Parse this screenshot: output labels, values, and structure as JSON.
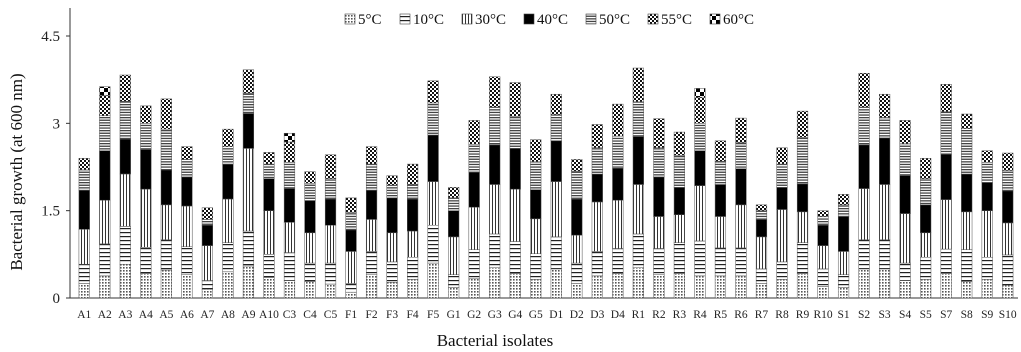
{
  "chart_data": {
    "type": "bar",
    "stacked": true,
    "xlabel": "Bacterial isolates",
    "ylabel": "Bacterial growth (at 600 nm)",
    "ylim": [
      0,
      4.5
    ],
    "yticks": [
      "0",
      "1.5",
      "3",
      "4.5"
    ],
    "ytick_values": [
      0,
      1.5,
      3,
      4.5
    ],
    "grid": false,
    "legend_position": "top",
    "categories": [
      "A1",
      "A2",
      "A3",
      "A4",
      "A5",
      "A6",
      "A7",
      "A8",
      "A9",
      "A10",
      "C3",
      "C4",
      "C5",
      "F1",
      "F2",
      "F3",
      "F4",
      "F5",
      "G1",
      "G2",
      "G3",
      "G4",
      "G5",
      "D1",
      "D2",
      "D3",
      "D4",
      "R1",
      "R2",
      "R3",
      "R4",
      "R5",
      "R6",
      "R7",
      "R8",
      "R9",
      "R10",
      "S1",
      "S2",
      "S3",
      "S4",
      "S5",
      "S7",
      "S8",
      "S9",
      "S10"
    ],
    "series": [
      {
        "name": "5°C",
        "pattern": "dots",
        "values": [
          0.25,
          0.38,
          0.58,
          0.42,
          0.48,
          0.4,
          0.15,
          0.45,
          0.55,
          0.35,
          0.3,
          0.28,
          0.24,
          0.1,
          0.4,
          0.27,
          0.32,
          0.6,
          0.18,
          0.33,
          0.52,
          0.42,
          0.32,
          0.5,
          0.25,
          0.38,
          0.42,
          0.52,
          0.4,
          0.42,
          0.38,
          0.38,
          0.38,
          0.25,
          0.32,
          0.42,
          0.2,
          0.18,
          0.5,
          0.5,
          0.3,
          0.32,
          0.42,
          0.28,
          0.32,
          0.22
        ]
      },
      {
        "name": "10°C",
        "pattern": "hlines",
        "values": [
          0.33,
          0.55,
          0.65,
          0.45,
          0.52,
          0.48,
          0.15,
          0.5,
          0.6,
          0.4,
          0.48,
          0.32,
          0.36,
          0.15,
          0.4,
          0.35,
          0.38,
          0.65,
          0.22,
          0.5,
          0.58,
          0.55,
          0.44,
          0.55,
          0.35,
          0.42,
          0.43,
          0.58,
          0.45,
          0.53,
          0.6,
          0.48,
          0.48,
          0.25,
          0.3,
          0.53,
          0.3,
          0.22,
          0.5,
          0.5,
          0.3,
          0.38,
          0.42,
          0.55,
          0.38,
          0.52
        ]
      },
      {
        "name": "30°C",
        "pattern": "vlines",
        "values": [
          0.6,
          0.75,
          0.9,
          1.0,
          0.6,
          0.7,
          0.6,
          0.75,
          1.42,
          0.75,
          0.52,
          0.52,
          0.65,
          0.55,
          0.55,
          0.5,
          0.45,
          0.75,
          0.65,
          0.73,
          0.85,
          0.9,
          0.6,
          0.95,
          0.48,
          0.85,
          0.83,
          0.85,
          0.55,
          0.48,
          0.95,
          0.54,
          0.74,
          0.55,
          0.9,
          0.53,
          0.4,
          0.4,
          0.88,
          0.95,
          0.85,
          0.42,
          0.85,
          0.65,
          0.8,
          0.55
        ]
      },
      {
        "name": "40°C",
        "pattern": "solid",
        "values": [
          0.67,
          0.85,
          0.6,
          0.68,
          0.6,
          0.5,
          0.35,
          0.6,
          0.6,
          0.55,
          0.58,
          0.55,
          0.45,
          0.37,
          0.5,
          0.6,
          0.55,
          0.8,
          0.45,
          0.6,
          0.68,
          0.7,
          0.5,
          0.7,
          0.62,
          0.48,
          0.55,
          0.82,
          0.68,
          0.47,
          0.6,
          0.55,
          0.62,
          0.3,
          0.38,
          0.48,
          0.35,
          0.6,
          0.75,
          0.8,
          0.65,
          0.48,
          0.78,
          0.65,
          0.48,
          0.55
        ]
      },
      {
        "name": "50°C",
        "pattern": "hlines-dense",
        "values": [
          0.35,
          0.6,
          0.65,
          0.45,
          0.7,
          0.3,
          0.1,
          0.3,
          0.35,
          0.25,
          0.45,
          0.3,
          0.35,
          0.3,
          0.45,
          0.22,
          0.25,
          0.55,
          0.22,
          0.48,
          0.65,
          0.55,
          0.48,
          0.45,
          0.48,
          0.45,
          0.55,
          0.6,
          0.5,
          0.55,
          0.47,
          0.4,
          0.45,
          0.15,
          0.4,
          0.8,
          0.15,
          0.2,
          0.65,
          0.35,
          0.55,
          0.45,
          0.73,
          0.78,
          0.35,
          0.35
        ]
      },
      {
        "name": "55°C",
        "pattern": "checker",
        "values": [
          0.2,
          0.35,
          0.45,
          0.3,
          0.52,
          0.22,
          0.2,
          0.3,
          0.4,
          0.2,
          0.35,
          0.2,
          0.41,
          0.25,
          0.3,
          0.16,
          0.35,
          0.38,
          0.18,
          0.41,
          0.52,
          0.58,
          0.38,
          0.35,
          0.2,
          0.4,
          0.55,
          0.58,
          0.5,
          0.4,
          0.45,
          0.35,
          0.42,
          0.1,
          0.28,
          0.45,
          0.1,
          0.18,
          0.58,
          0.4,
          0.4,
          0.35,
          0.47,
          0.25,
          0.2,
          0.3
        ]
      },
      {
        "name": "60°C",
        "pattern": "checker-large",
        "values": [
          0,
          0.15,
          0,
          0,
          0,
          0,
          0,
          0,
          0,
          0,
          0.15,
          0,
          0,
          0,
          0,
          0,
          0,
          0,
          0,
          0,
          0,
          0,
          0,
          0,
          0,
          0,
          0,
          0,
          0,
          0,
          0.15,
          0,
          0,
          0,
          0,
          0,
          0,
          0,
          0,
          0,
          0,
          0,
          0,
          0,
          0,
          0
        ]
      }
    ]
  }
}
